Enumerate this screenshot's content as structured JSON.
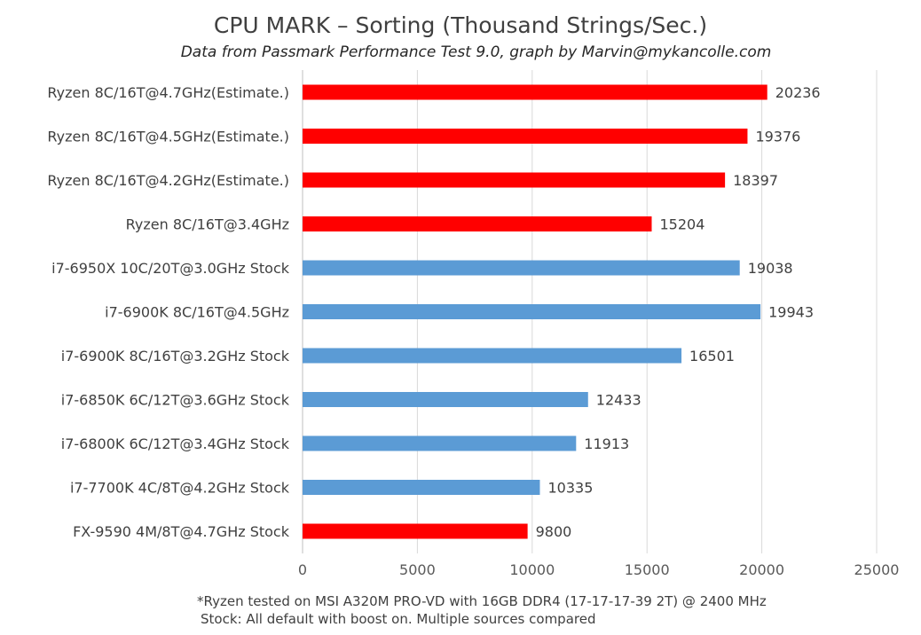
{
  "chart_data": {
    "type": "bar",
    "orientation": "horizontal",
    "title": "CPU MARK – Sorting (Thousand Strings/Sec.)",
    "subtitle": "Data from Passmark Performance Test 9.0, graph by Marvin@mykancolle.com",
    "categories": [
      "Ryzen 8C/16T@4.7GHz(Estimate.)",
      "Ryzen 8C/16T@4.5GHz(Estimate.)",
      "Ryzen 8C/16T@4.2GHz(Estimate.)",
      "Ryzen 8C/16T@3.4GHz",
      "i7-6950X 10C/20T@3.0GHz Stock",
      "i7-6900K 8C/16T@4.5GHz",
      "i7-6900K 8C/16T@3.2GHz Stock",
      "i7-6850K 6C/12T@3.6GHz Stock",
      "i7-6800K 6C/12T@3.4GHz Stock",
      "i7-7700K 4C/8T@4.2GHz Stock",
      "FX-9590 4M/8T@4.7GHz Stock"
    ],
    "values": [
      20236,
      19376,
      18397,
      15204,
      19038,
      19943,
      16501,
      12433,
      11913,
      10335,
      9800
    ],
    "bar_colors": [
      "#ff0000",
      "#ff0000",
      "#ff0000",
      "#ff0000",
      "#5b9bd5",
      "#5b9bd5",
      "#5b9bd5",
      "#5b9bd5",
      "#5b9bd5",
      "#5b9bd5",
      "#ff0000"
    ],
    "xlim": [
      0,
      25000
    ],
    "xticks": [
      0,
      5000,
      10000,
      15000,
      20000,
      25000
    ],
    "xlabel": "",
    "ylabel": "",
    "grid": "vertical",
    "data_labels": true
  },
  "footnotes": [
    "*Ryzen tested on MSI A320M PRO-VD with 16GB DDR4 (17-17-17-39 2T) @ 2400 MHz",
    "Stock: All default with boost on. Multiple sources compared"
  ]
}
